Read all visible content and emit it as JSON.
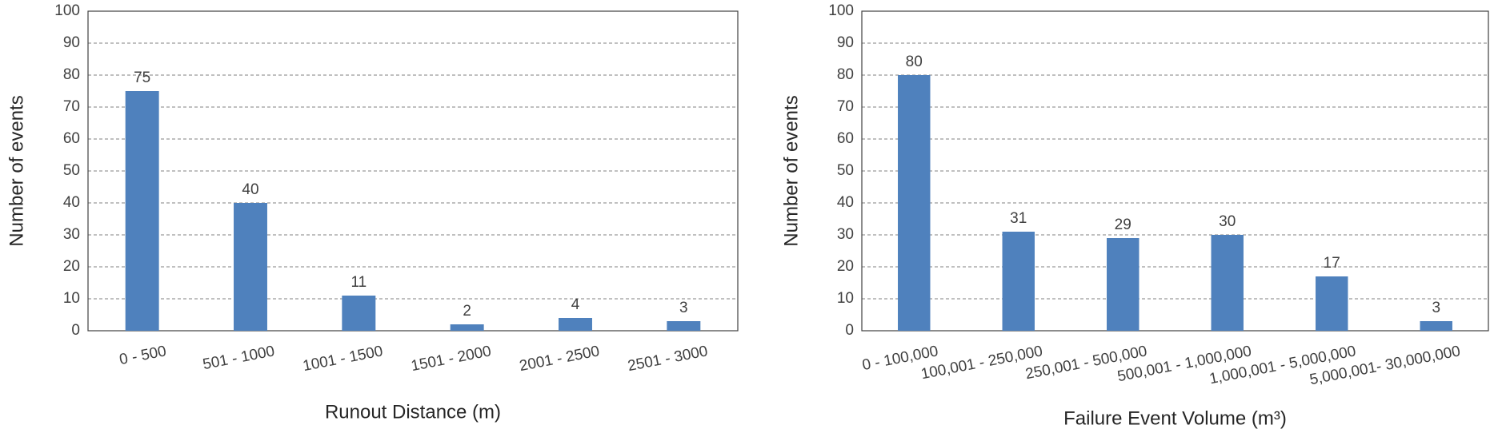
{
  "chart_data": [
    {
      "type": "bar",
      "xlabel": "Runout Distance (m)",
      "ylabel": "Number of events",
      "categories": [
        "0 - 500",
        "501 - 1000",
        "1001 - 1500",
        "1501 - 2000",
        "2001 - 2500",
        "2501 - 3000"
      ],
      "values": [
        75,
        40,
        11,
        2,
        4,
        3
      ],
      "color": "#4f81bd",
      "ylim": [
        0,
        100
      ],
      "yticks": [
        0,
        10,
        20,
        30,
        40,
        50,
        60,
        70,
        80,
        90,
        100
      ],
      "grid": true
    },
    {
      "type": "bar",
      "xlabel": "Failure Event Volume (m³)",
      "ylabel": "Number of events",
      "categories": [
        "0 - 100,000",
        "100,001 - 250,000",
        "250,001 - 500,000",
        "500,001 - 1,000,000",
        "1,000,001 - 5,000,000",
        "5,000,001- 30,000,000"
      ],
      "values": [
        80,
        31,
        29,
        30,
        17,
        3
      ],
      "color": "#4f81bd",
      "ylim": [
        0,
        100
      ],
      "yticks": [
        0,
        10,
        20,
        30,
        40,
        50,
        60,
        70,
        80,
        90,
        100
      ],
      "grid": true
    }
  ]
}
